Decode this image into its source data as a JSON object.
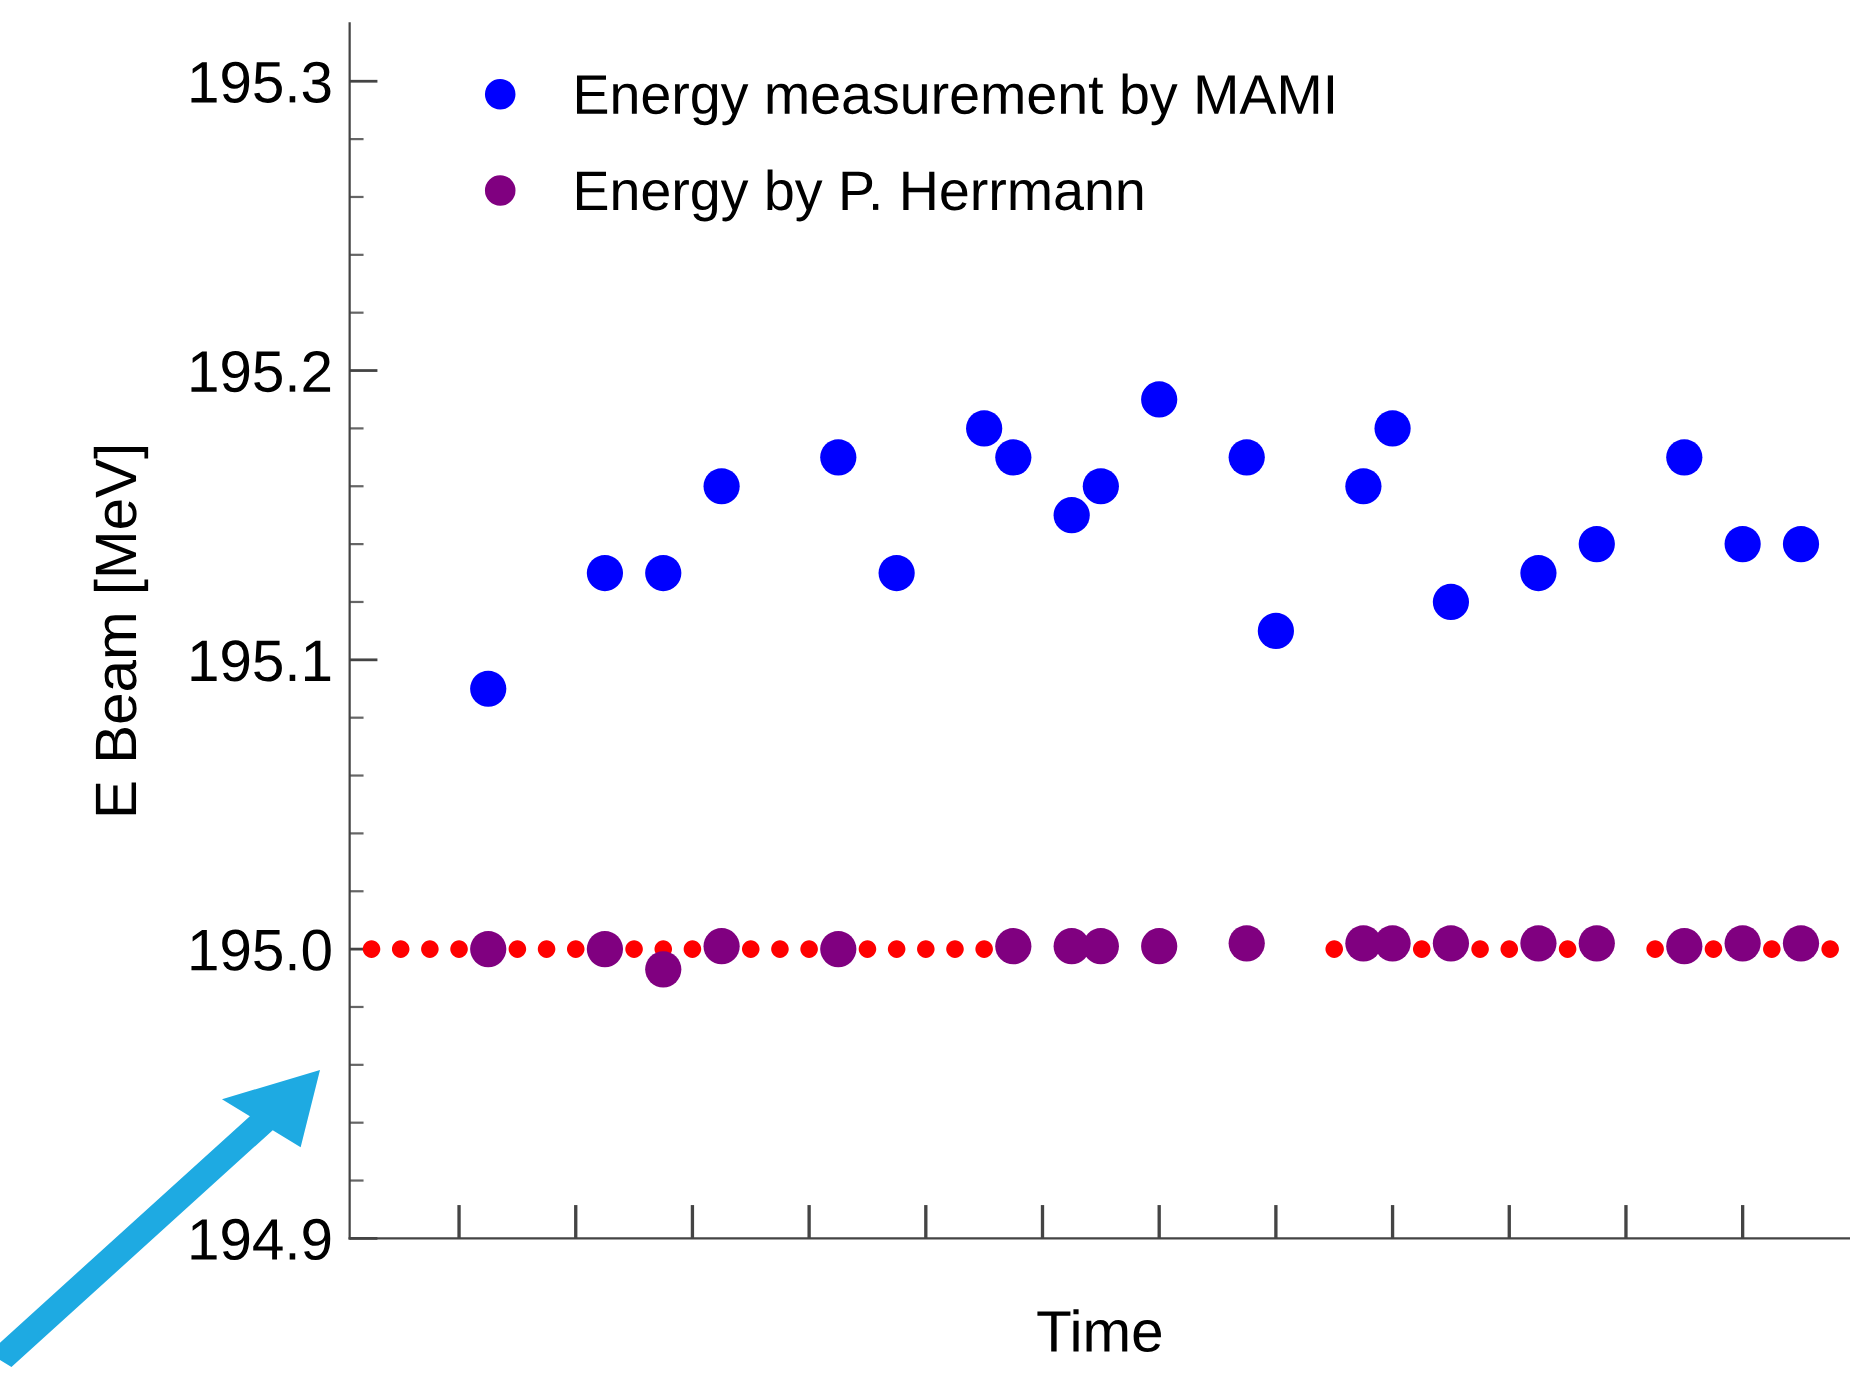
{
  "chart_data": {
    "type": "scatter",
    "xlabel": "Time",
    "ylabel": "E Beam [MeV]",
    "categories": [
      null,
      null,
      null,
      null,
      null,
      null,
      null,
      null,
      null,
      null,
      null,
      null,
      null,
      null,
      null,
      null,
      null,
      null,
      null,
      null,
      null,
      null,
      null,
      null,
      null,
      null,
      null,
      null,
      null,
      null,
      null,
      null,
      null,
      null,
      null,
      null,
      null,
      null,
      null,
      null,
      null,
      null,
      null,
      null,
      null,
      null,
      null,
      null,
      null,
      null,
      null
    ],
    "ylim": [
      194.9,
      195.32
    ],
    "yticks": [
      {
        "value": 194.9,
        "label": "194.9"
      },
      {
        "value": 194.92,
        "label": null
      },
      {
        "value": 194.94,
        "label": null
      },
      {
        "value": 194.96,
        "label": null
      },
      {
        "value": 194.98,
        "label": null
      },
      {
        "value": 195.0,
        "label": "195.0"
      },
      {
        "value": 195.02,
        "label": null
      },
      {
        "value": 195.04,
        "label": null
      },
      {
        "value": 195.06,
        "label": null
      },
      {
        "value": 195.08,
        "label": null
      },
      {
        "value": 195.1,
        "label": "195.1"
      },
      {
        "value": 195.12,
        "label": null
      },
      {
        "value": 195.14,
        "label": null
      },
      {
        "value": 195.16,
        "label": null
      },
      {
        "value": 195.18,
        "label": null
      },
      {
        "value": 195.2,
        "label": "195.2"
      },
      {
        "value": 195.22,
        "label": null
      },
      {
        "value": 195.24,
        "label": null
      },
      {
        "value": 195.26,
        "label": null
      },
      {
        "value": 195.28,
        "label": null
      },
      {
        "value": 195.3,
        "label": "195.3"
      }
    ],
    "legend": "top left",
    "marker": "circle",
    "series": [
      {
        "color": "#ff0000",
        "values": [
          195.0,
          195.0,
          195.0,
          195.0,
          null,
          195.0,
          195.0,
          195.0,
          null,
          195.0,
          195.0,
          195.0,
          null,
          195.0,
          195.0,
          195.0,
          null,
          195.0,
          195.0,
          195.0,
          195.0,
          195.0,
          null,
          null,
          null,
          null,
          null,
          null,
          null,
          null,
          null,
          null,
          null,
          195.0,
          null,
          null,
          195.0,
          null,
          195.0,
          195.0,
          null,
          195.0,
          null,
          null,
          195.0,
          null,
          195.0,
          null,
          195.0,
          null,
          195.0
        ]
      },
      {
        "name": "Energy measurement by MAMI",
        "color": "#0000ff",
        "values": [
          null,
          null,
          null,
          null,
          195.09,
          null,
          null,
          null,
          195.13,
          null,
          195.13,
          null,
          195.16,
          null,
          null,
          null,
          195.17,
          null,
          195.13,
          null,
          null,
          195.18,
          195.17,
          null,
          195.15,
          195.16,
          null,
          195.19,
          null,
          null,
          195.17,
          195.11,
          null,
          null,
          195.16,
          195.18,
          null,
          195.12,
          null,
          null,
          195.13,
          null,
          195.14,
          null,
          null,
          195.17,
          null,
          195.14,
          null,
          195.14,
          null
        ]
      },
      {
        "name": "Energy by P. Herrmann",
        "color": "#800080",
        "values": [
          null,
          null,
          null,
          null,
          195.0,
          null,
          null,
          null,
          195.0,
          null,
          194.993,
          null,
          195.001,
          null,
          null,
          null,
          195.0,
          null,
          null,
          null,
          null,
          null,
          195.001,
          null,
          195.001,
          195.001,
          null,
          195.001,
          null,
          null,
          195.002,
          null,
          null,
          null,
          195.002,
          195.002,
          null,
          195.002,
          null,
          null,
          195.002,
          null,
          195.002,
          null,
          null,
          195.001,
          null,
          195.002,
          null,
          195.002,
          null
        ]
      }
    ]
  }
}
